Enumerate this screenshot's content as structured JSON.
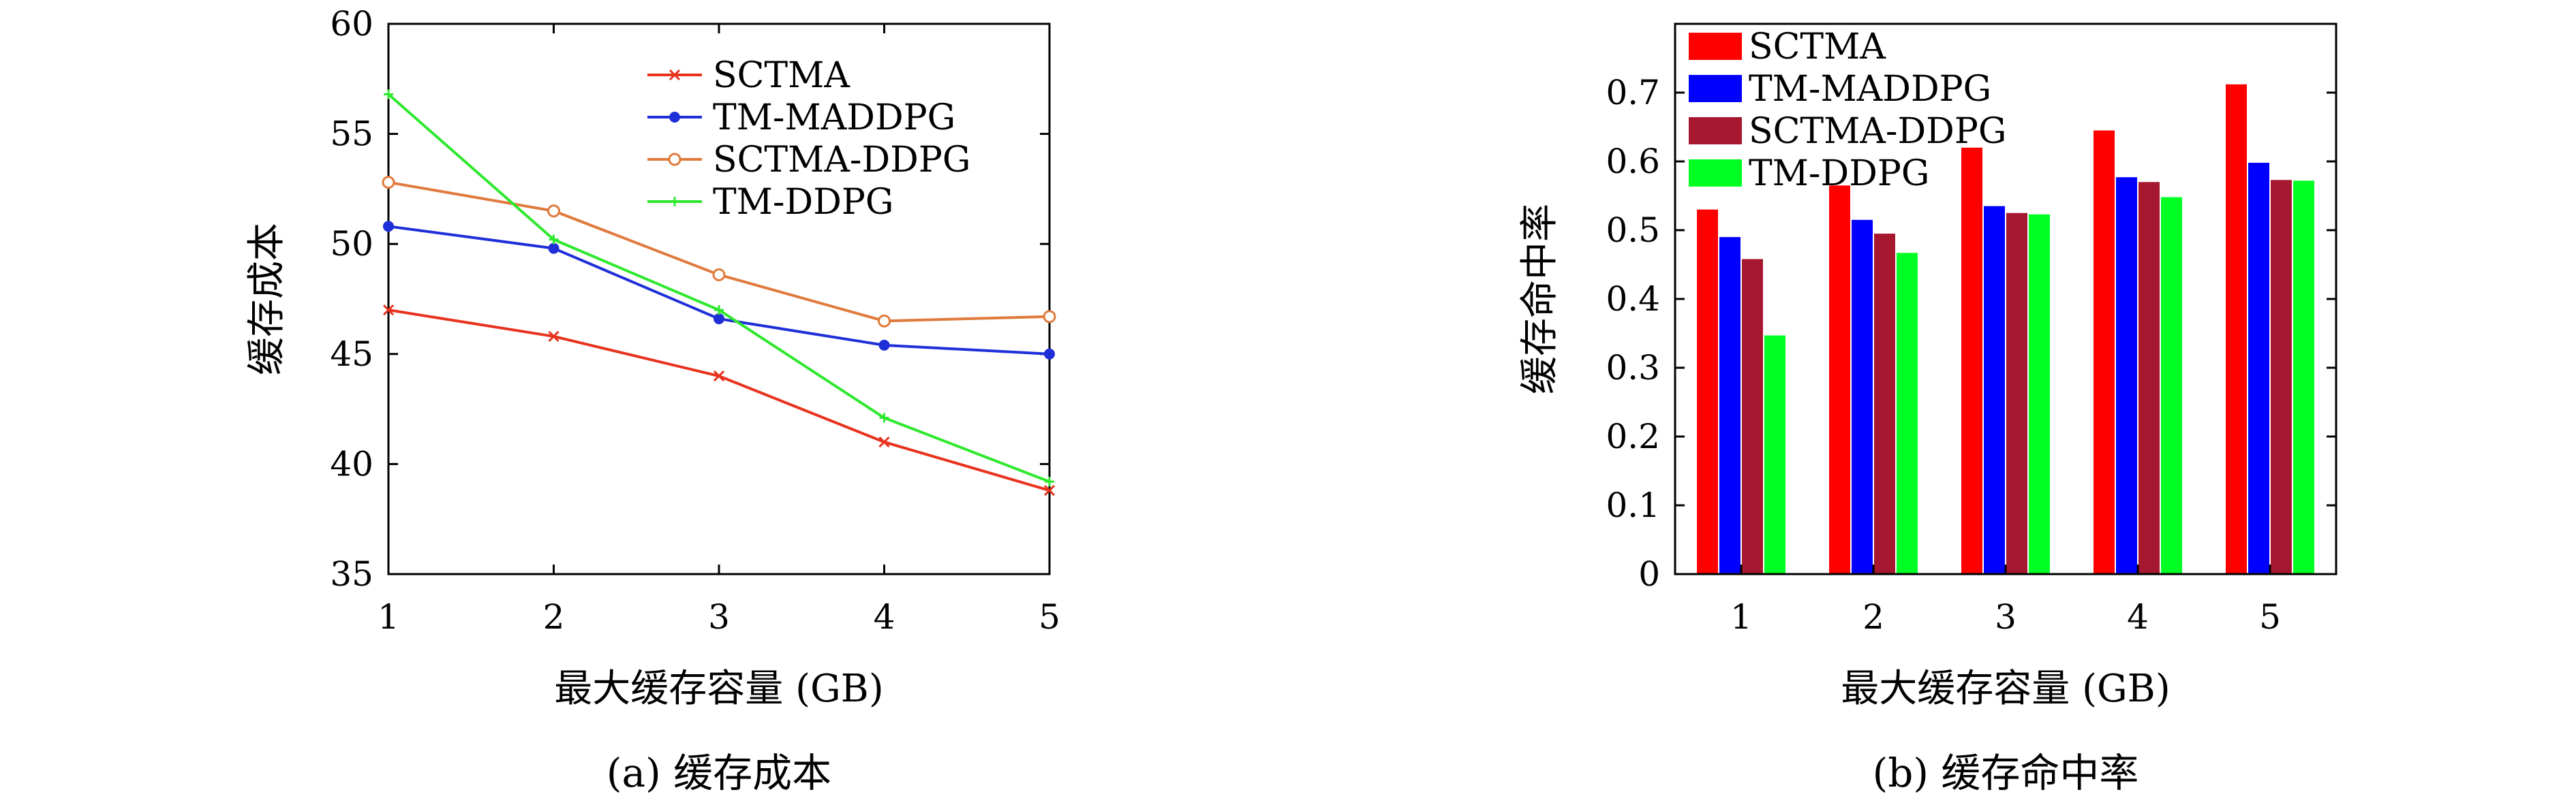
{
  "chart_data": [
    {
      "type": "line",
      "caption": "(a) 缓存成本",
      "xlabel": "最大缓存容量 (GB)",
      "ylabel": "缓存成本",
      "x": [
        1,
        2,
        3,
        4,
        5
      ],
      "xlim": [
        1,
        5
      ],
      "ylim": [
        35,
        60
      ],
      "yticks": [
        35,
        40,
        45,
        50,
        55,
        60
      ],
      "grid": false,
      "legend_position": "top-right",
      "series": [
        {
          "name": "SCTMA",
          "color": "#e8321e",
          "marker": "x",
          "values": [
            47.0,
            45.8,
            44.0,
            41.0,
            38.8
          ]
        },
        {
          "name": "TM-MADDPG",
          "color": "#1f2fd8",
          "marker": "filled-circle",
          "values": [
            50.8,
            49.8,
            46.6,
            45.4,
            45.0
          ]
        },
        {
          "name": "SCTMA-DDPG",
          "color": "#e07a3c",
          "marker": "open-circle",
          "values": [
            52.8,
            51.5,
            48.6,
            46.5,
            46.7
          ]
        },
        {
          "name": "TM-DDPG",
          "color": "#2ee82e",
          "marker": "plus",
          "values": [
            56.8,
            50.2,
            47.0,
            42.1,
            39.2
          ]
        }
      ]
    },
    {
      "type": "bar",
      "caption": "(b) 缓存命中率",
      "xlabel": "最大缓存容量 (GB)",
      "ylabel": "缓存命中率",
      "categories": [
        "1",
        "2",
        "3",
        "4",
        "5"
      ],
      "ylim": [
        0,
        0.8
      ],
      "yticks": [
        "0",
        "0.1",
        "0.2",
        "0.3",
        "0.4",
        "0.5",
        "0.6",
        "0.7"
      ],
      "grid": false,
      "legend_position": "top-left",
      "series": [
        {
          "name": "SCTMA",
          "color": "#ff0000",
          "values": [
            0.53,
            0.565,
            0.62,
            0.645,
            0.712
          ]
        },
        {
          "name": "TM-MADDPG",
          "color": "#0000ff",
          "values": [
            0.49,
            0.515,
            0.535,
            0.577,
            0.598
          ]
        },
        {
          "name": "SCTMA-DDPG",
          "color": "#a51830",
          "values": [
            0.458,
            0.495,
            0.525,
            0.57,
            0.573
          ]
        },
        {
          "name": "TM-DDPG",
          "color": "#00ff22",
          "values": [
            0.347,
            0.467,
            0.523,
            0.548,
            0.572
          ]
        }
      ]
    }
  ]
}
